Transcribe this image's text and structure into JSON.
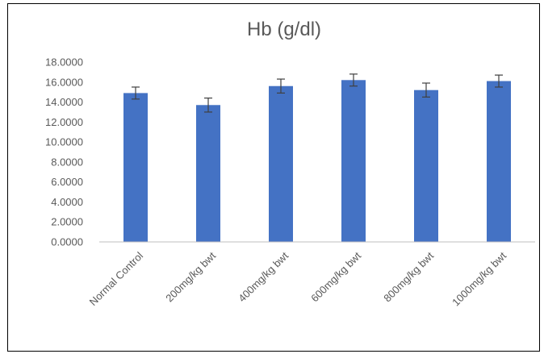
{
  "chart_data": {
    "type": "bar",
    "title": "Hb (g/dl)",
    "xlabel": "",
    "ylabel": "",
    "categories": [
      "Normal Control",
      "200mg/kg bwt",
      "400mg/kg bwt",
      "600mg/kg bwt",
      "800mg/kg bwt",
      "1000mg/kg bwt"
    ],
    "values": [
      14.9,
      13.7,
      15.6,
      16.2,
      15.2,
      16.1
    ],
    "error": [
      0.6,
      0.7,
      0.7,
      0.6,
      0.7,
      0.6
    ],
    "ylim": [
      0,
      18
    ],
    "yticks": [
      "0.0000",
      "2.0000",
      "4.0000",
      "6.0000",
      "8.0000",
      "10.0000",
      "12.0000",
      "14.0000",
      "16.0000",
      "18.0000"
    ],
    "grid": false,
    "legend": "none",
    "bar_color": "#4472C4",
    "error_color": "#404040"
  }
}
